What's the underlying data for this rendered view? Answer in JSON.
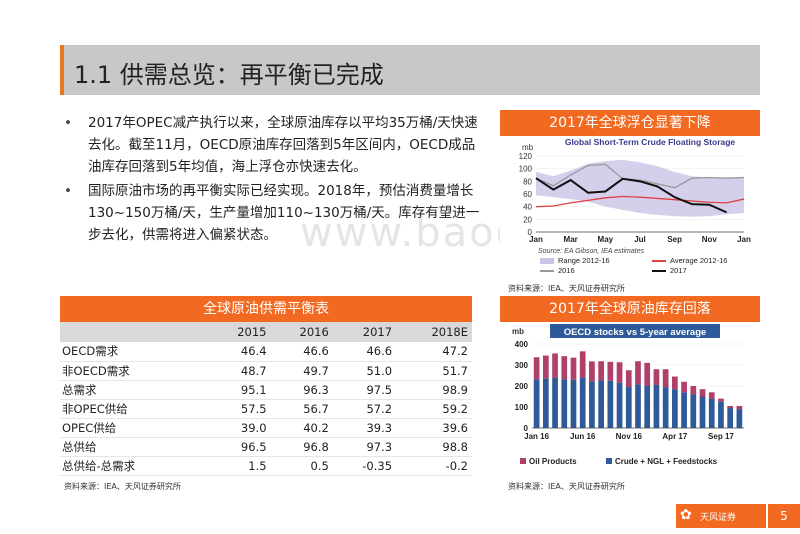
{
  "slide_title": "1.1 供需总览：再平衡已完成",
  "bullets": [
    "2017年OPEC减产执行以来，全球原油库存以平均35万桶/天快速去化。截至11月，OECD原油库存回落到5年区间内，OECD成品油库存回落到5年均值，海上浮仓亦快速去化。",
    "国际原油市场的再平衡实际已经实现。2018年，预估消费量增长130~150万桶/天，生产量增加110~130万桶/天。库存有望进一步去化，供需将进入偏紧状态。"
  ],
  "watermark": "www.baogao8.com",
  "table": {
    "caption": "全球原油供需平衡表",
    "columns": [
      "",
      "2015",
      "2016",
      "2017",
      "2018E"
    ],
    "rows": [
      [
        "OECD需求",
        "46.4",
        "46.6",
        "46.6",
        "47.2"
      ],
      [
        "非OECD需求",
        "48.7",
        "49.7",
        "51.0",
        "51.7"
      ],
      [
        "总需求",
        "95.1",
        "96.3",
        "97.5",
        "98.9"
      ],
      [
        "非OPEC供给",
        "57.5",
        "56.7",
        "57.2",
        "59.2"
      ],
      [
        "OPEC供给",
        "39.0",
        "40.2",
        "39.3",
        "39.6"
      ],
      [
        "总供给",
        "96.5",
        "96.8",
        "97.3",
        "98.8"
      ],
      [
        "总供给-总需求",
        "1.5",
        "0.5",
        "-0.35",
        "-0.2"
      ]
    ],
    "source": "资料来源：IEA、天风证券研究所"
  },
  "footer": {
    "brand": "天风证券",
    "page": "5"
  },
  "chart_data": [
    {
      "type": "line",
      "panel_title": "2017年全球浮仓显著下降",
      "title": "Global Short-Term Crude Floating Storage",
      "ylabel": "mb",
      "ylim": [
        0,
        120
      ],
      "yticks": [
        0,
        20,
        40,
        60,
        80,
        100,
        120
      ],
      "x_ticks": [
        "Jan",
        "Mar",
        "May",
        "Jul",
        "Sep",
        "Nov",
        "Jan"
      ],
      "range_low": [
        58,
        55,
        52,
        48,
        40,
        35,
        30,
        27,
        25,
        24,
        25,
        28,
        30
      ],
      "range_high": [
        95,
        88,
        97,
        108,
        112,
        114,
        110,
        104,
        95,
        88,
        86,
        86,
        87
      ],
      "series": [
        {
          "name": "2016",
          "color": "#999999",
          "values": [
            85,
            73,
            90,
            105,
            107,
            84,
            82,
            76,
            70,
            85,
            86,
            85,
            86
          ]
        },
        {
          "name": "Average 2012-16",
          "color": "#e04040",
          "values": [
            40,
            41,
            46,
            50,
            54,
            56,
            55,
            53,
            51,
            49,
            47,
            46,
            52
          ]
        },
        {
          "name": "2017",
          "color": "#111111",
          "values": [
            85,
            67,
            82,
            62,
            64,
            84,
            80,
            72,
            55,
            44,
            43,
            31,
            null
          ]
        }
      ],
      "legend": [
        "Range 2012-16",
        "Average 2012-16",
        "2016",
        "2017"
      ],
      "source_note": "Source: EA Gibson, IEA estimates",
      "source": "资料来源：IEA、天风证券研究所",
      "colors": {
        "range": "#c9c3e6"
      }
    },
    {
      "type": "bar",
      "panel_title": "2017年全球原油库存回落",
      "title": "OECD stocks vs 5-year average",
      "ylabel": "mb",
      "ylim": [
        0,
        400
      ],
      "yticks": [
        0,
        100,
        200,
        300,
        400
      ],
      "x_ticks": [
        "Jan 16",
        "Jun 16",
        "Nov 16",
        "Apr 17",
        "Sep 17"
      ],
      "series": [
        {
          "name": "Crude + NGL + Feedstocks",
          "color": "#2e5a9a",
          "values": [
            232,
            235,
            240,
            232,
            230,
            240,
            222,
            226,
            225,
            216,
            195,
            208,
            200,
            205,
            195,
            185,
            170,
            160,
            150,
            140,
            125,
            95,
            90
          ]
        },
        {
          "name": "Oil Products",
          "color": "#b0406a",
          "values": [
            105,
            110,
            115,
            110,
            105,
            125,
            95,
            92,
            90,
            97,
            80,
            110,
            110,
            75,
            85,
            60,
            50,
            40,
            35,
            30,
            15,
            10,
            15
          ]
        }
      ],
      "legend": [
        "Oil Products",
        "Crude + NGL + Feedstocks"
      ],
      "source": "资料来源：IEA、天风证券研究所"
    }
  ]
}
